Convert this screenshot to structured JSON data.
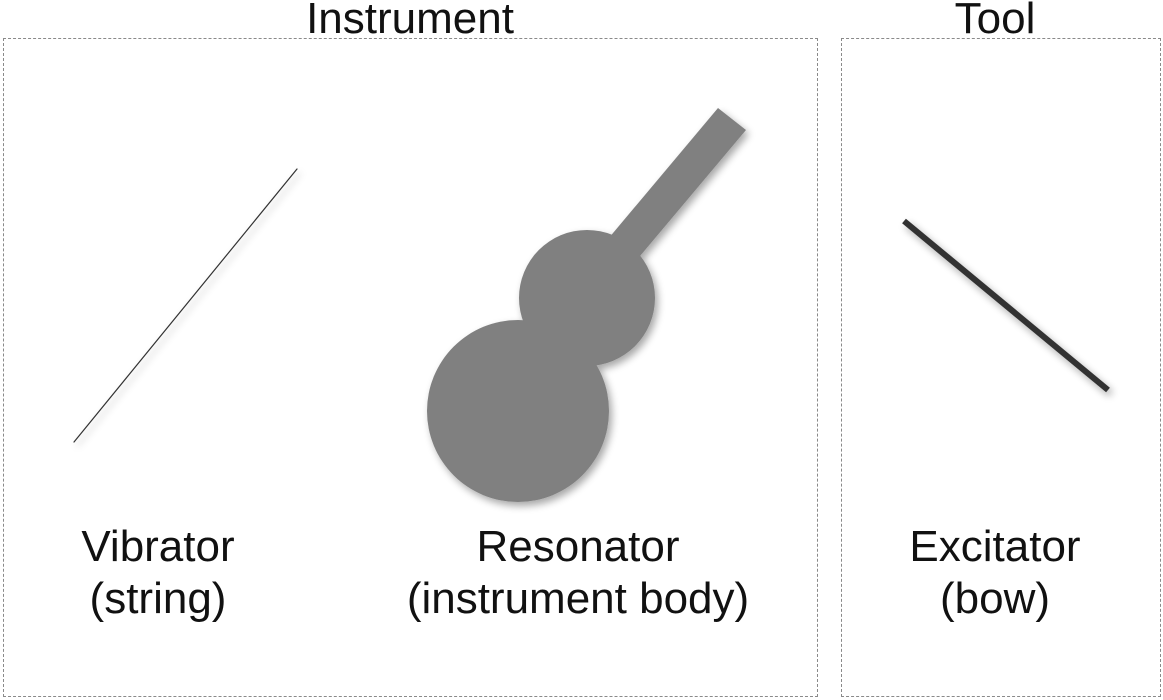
{
  "groups": {
    "instrument": {
      "title": "Instrument"
    },
    "tool": {
      "title": "Tool"
    }
  },
  "components": {
    "vibrator": {
      "name": "Vibrator",
      "detail": "(string)",
      "icon": "string-line-icon"
    },
    "resonator": {
      "name": "Resonator",
      "detail": "(instrument body)",
      "icon": "instrument-body-icon"
    },
    "excitator": {
      "name": "Excitator",
      "detail": "(bow)",
      "icon": "bow-line-icon"
    }
  },
  "colors": {
    "border": "#8a8a8a",
    "body_fill": "#808080",
    "bow": "#333333",
    "string": "#333333",
    "text": "#111111"
  }
}
